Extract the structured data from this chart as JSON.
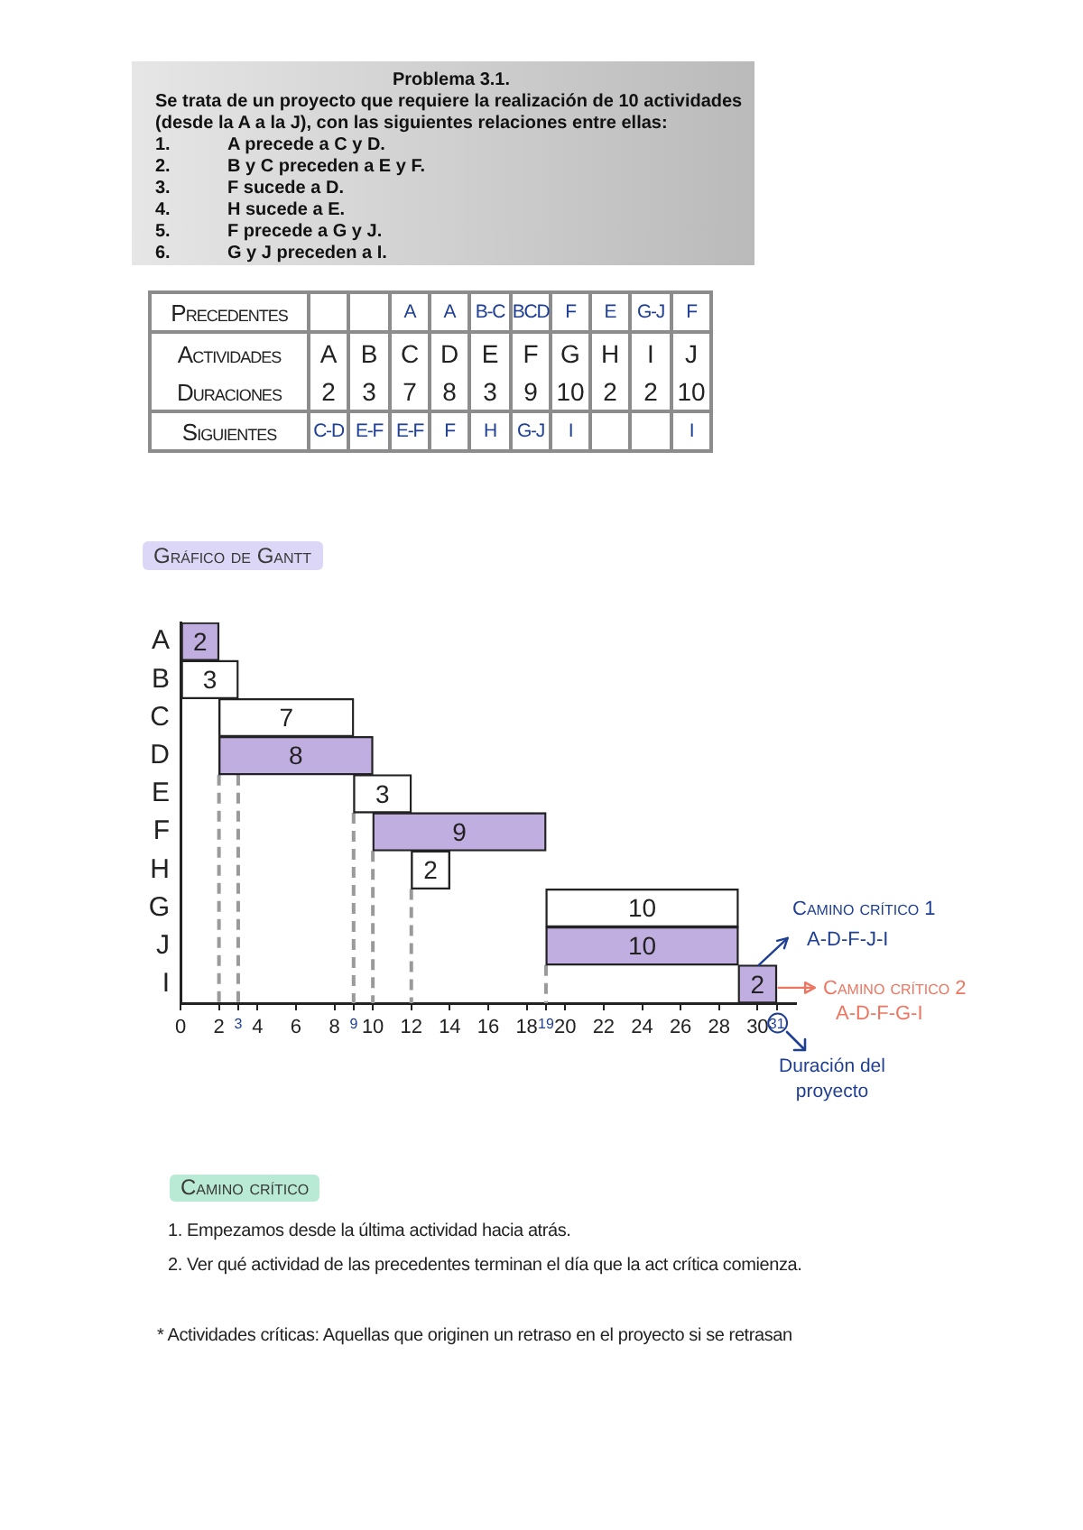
{
  "chart_data": {
    "type": "bar",
    "orientation": "horizontal",
    "title": "Gráfico de Gantt",
    "categories": [
      "A",
      "B",
      "C",
      "D",
      "E",
      "F",
      "H",
      "G",
      "J",
      "I"
    ],
    "base": [
      0,
      0,
      2,
      2,
      9,
      10,
      12,
      19,
      19,
      29
    ],
    "values": [
      2,
      3,
      7,
      8,
      3,
      9,
      2,
      10,
      10,
      2
    ],
    "colors": [
      "#c0aee0",
      "#ffffff",
      "#ffffff",
      "#c0aee0",
      "#ffffff",
      "#c0aee0",
      "#ffffff",
      "#ffffff",
      "#c0aee0",
      "#c0aee0"
    ],
    "xlim": [
      0,
      32
    ],
    "xticks": [
      0,
      2,
      3,
      4,
      6,
      8,
      9,
      10,
      12,
      14,
      16,
      18,
      19,
      20,
      22,
      24,
      26,
      28,
      30,
      31
    ],
    "grid": false,
    "data_labels": true,
    "ref_lines": [
      {
        "axis": "x",
        "value": 2,
        "color": "#9a9a9a",
        "line_style": "dashed"
      },
      {
        "axis": "x",
        "value": 3,
        "color": "#9a9a9a",
        "line_style": "dashed"
      },
      {
        "axis": "x",
        "value": 9,
        "color": "#9a9a9a",
        "line_style": "dashed"
      },
      {
        "axis": "x",
        "value": 10,
        "color": "#9a9a9a",
        "line_style": "dashed"
      },
      {
        "axis": "x",
        "value": 12,
        "color": "#9a9a9a",
        "line_style": "dashed"
      },
      {
        "axis": "x",
        "value": 19,
        "color": "#9a9a9a",
        "line_style": "dashed"
      }
    ],
    "annotations": [
      "Problema 3.1.",
      "Se trata de un proyecto que requiere la realización de 10 actividades (desde la A a la J), con las siguientes relaciones entre ellas:",
      "1.\tA precede a C y D.",
      "2.\tB y C preceden a E y F.",
      "3.\tF sucede a D.",
      "4.\tH sucede a E.",
      "5.\tF precede a G y J.",
      "6.\tG y J preceden a I.",
      "Precedentes\t\t\tA\tA\tB-C\tBCD\tF\tE\tG-J\tF",
      "Actividades\tA\tB\tC\tD\tE\tF\tG\tH\tI\tJ",
      "Duraciones\t2\t3\t7\t8\t3\t9\t10\t2\t2\t10",
      "Siguientes\tC-D\tE-F\tE-F\tF\tH\tG-J\tI\t\t\tI",
      "Camino crítico 1",
      "A-D-F-J-I",
      "Camino crítico 2",
      "A-D-F-G-I",
      "Duración del proyecto",
      "Camino crítico",
      "1. Empezamos desde la última actividad hacia atrás.",
      "2. Ver qué actividad de las precedentes terminan el día que la act crítica comienza.",
      "* Actividades críticas: Aquellas que originen un retraso en el proyecto si se retrasan"
    ]
  }
}
